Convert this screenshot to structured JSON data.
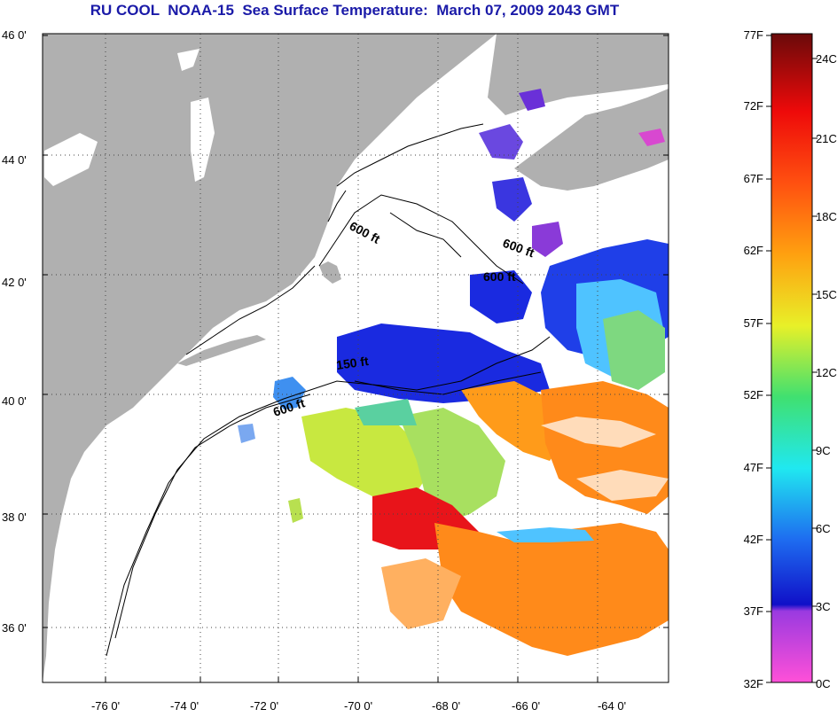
{
  "title": "RU COOL  NOAA-15  Sea Surface Temperature:  March 07, 2009 2043 GMT",
  "map": {
    "lon_ticks": [
      "-76 0'",
      "-74 0'",
      "-72 0'",
      "-70 0'",
      "-68 0'",
      "-66 0'",
      "-64 0'"
    ],
    "lat_ticks": [
      "46 0'",
      "44 0'",
      "42 0'",
      "40 0'",
      "38 0'",
      "36 0'"
    ],
    "contour_labels": [
      "600 ft",
      "600 ft",
      "600 ft",
      "150 ft",
      "600 ft"
    ],
    "colors": {
      "land": "#b0b0b0",
      "no_data": "#ffffff",
      "cold": "#1a2ae0",
      "cool": "#4fc3ff",
      "mid": "#c8e840",
      "warm": "#ff9b1a",
      "hot": "#e8141a"
    }
  },
  "colorbar": {
    "fahrenheit_labels": [
      "77F",
      "72F",
      "67F",
      "62F",
      "57F",
      "52F",
      "47F",
      "42F",
      "37F",
      "32F"
    ],
    "celsius_labels": [
      "24C",
      "21C",
      "18C",
      "15C",
      "12C",
      "9C",
      "6C",
      "3C",
      "0C"
    ]
  }
}
